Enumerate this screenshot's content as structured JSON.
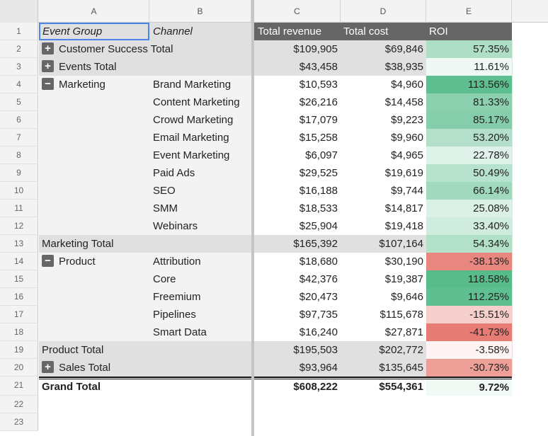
{
  "columns": [
    "A",
    "B",
    "C",
    "D",
    "E"
  ],
  "row_numbers": [
    "1",
    "2",
    "3",
    "4",
    "5",
    "6",
    "7",
    "8",
    "9",
    "10",
    "11",
    "12",
    "13",
    "14",
    "15",
    "16",
    "17",
    "18",
    "19",
    "20",
    "21",
    "22",
    "23"
  ],
  "header": {
    "event_group": "Event Group",
    "channel": "Channel",
    "revenue": "Total revenue",
    "cost": "Total cost",
    "roi": "ROI"
  },
  "rows": [
    {
      "a": "Customer Success Total",
      "toggle": "+",
      "b": "",
      "c": "$109,905",
      "d": "$69,846",
      "e": "57.35%"
    },
    {
      "a": "Events Total",
      "toggle": "+",
      "b": "",
      "c": "$43,458",
      "d": "$38,935",
      "e": "11.61%"
    },
    {
      "a": "Marketing",
      "toggle": "−",
      "b": "Brand Marketing",
      "c": "$10,593",
      "d": "$4,960",
      "e": "113.56%"
    },
    {
      "a": "",
      "toggle": "",
      "b": "Content Marketing",
      "c": "$26,216",
      "d": "$14,458",
      "e": "81.33%"
    },
    {
      "a": "",
      "toggle": "",
      "b": "Crowd Marketing",
      "c": "$17,079",
      "d": "$9,223",
      "e": "85.17%"
    },
    {
      "a": "",
      "toggle": "",
      "b": "Email Marketing",
      "c": "$15,258",
      "d": "$9,960",
      "e": "53.20%"
    },
    {
      "a": "",
      "toggle": "",
      "b": "Event Marketing",
      "c": "$6,097",
      "d": "$4,965",
      "e": "22.78%"
    },
    {
      "a": "",
      "toggle": "",
      "b": "Paid Ads",
      "c": "$29,525",
      "d": "$19,619",
      "e": "50.49%"
    },
    {
      "a": "",
      "toggle": "",
      "b": "SEO",
      "c": "$16,188",
      "d": "$9,744",
      "e": "66.14%"
    },
    {
      "a": "",
      "toggle": "",
      "b": "SMM",
      "c": "$18,533",
      "d": "$14,817",
      "e": "25.08%"
    },
    {
      "a": "",
      "toggle": "",
      "b": "Webinars",
      "c": "$25,904",
      "d": "$19,418",
      "e": "33.40%"
    },
    {
      "a": "Marketing Total",
      "toggle": "",
      "b": "",
      "c": "$165,392",
      "d": "$107,164",
      "e": "54.34%"
    },
    {
      "a": "Product",
      "toggle": "−",
      "b": "Attribution",
      "c": "$18,680",
      "d": "$30,190",
      "e": "-38.13%"
    },
    {
      "a": "",
      "toggle": "",
      "b": "Core",
      "c": "$42,376",
      "d": "$19,387",
      "e": "118.58%"
    },
    {
      "a": "",
      "toggle": "",
      "b": "Freemium",
      "c": "$20,473",
      "d": "$9,646",
      "e": "112.25%"
    },
    {
      "a": "",
      "toggle": "",
      "b": "Pipelines",
      "c": "$97,735",
      "d": "$115,678",
      "e": "-15.51%"
    },
    {
      "a": "",
      "toggle": "",
      "b": "Smart Data",
      "c": "$16,240",
      "d": "$27,871",
      "e": "-41.73%"
    },
    {
      "a": "Product Total",
      "toggle": "",
      "b": "",
      "c": "$195,503",
      "d": "$202,772",
      "e": "-3.58%"
    },
    {
      "a": "Sales Total",
      "toggle": "+",
      "b": "",
      "c": "$93,964",
      "d": "$135,645",
      "e": "-30.73%"
    }
  ],
  "grand_total": {
    "a": "Grand Total",
    "c": "$608,222",
    "d": "$554,361",
    "e": "9.72%"
  },
  "colors": {
    "header_dark": "#666666",
    "total_row": "#e0e0e0",
    "label_col": "#f3f3f3",
    "green_strong": "#57bb8a",
    "red_strong": "#e67c73",
    "neutral": "#ffffff"
  },
  "roi_scale": {
    "min": -41.73,
    "mid": 0,
    "max": 118.58
  }
}
